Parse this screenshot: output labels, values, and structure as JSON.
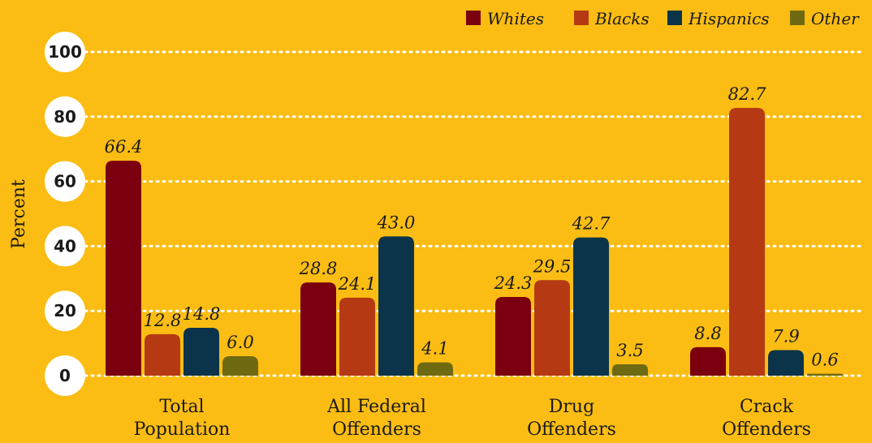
{
  "chart_data": {
    "type": "bar",
    "ylabel": "Percent",
    "ylim": [
      0,
      100
    ],
    "yticks": [
      0,
      20,
      40,
      60,
      80,
      100
    ],
    "grid": true,
    "legend_position": "top-right",
    "categories": [
      [
        "Total",
        "Population"
      ],
      [
        "All Federal",
        "Offenders"
      ],
      [
        "Drug",
        "Offenders"
      ],
      [
        "Crack",
        "Offenders"
      ]
    ],
    "series": [
      {
        "name": "Whites",
        "color": "#7a0010",
        "values": [
          66.4,
          28.8,
          24.3,
          8.8
        ]
      },
      {
        "name": "Blacks",
        "color": "#b53a13",
        "values": [
          12.8,
          24.1,
          29.5,
          82.7
        ]
      },
      {
        "name": "Hispanics",
        "color": "#0b344a",
        "values": [
          14.8,
          43.0,
          42.7,
          7.9
        ]
      },
      {
        "name": "Other",
        "color": "#6e6a12",
        "values": [
          6.0,
          4.1,
          3.5,
          0.6
        ]
      }
    ],
    "data_labels": [
      [
        "66.4",
        "28.8",
        "24.3",
        "8.8"
      ],
      [
        "12.8",
        "24.1",
        "29.5",
        "82.7"
      ],
      [
        "14.8",
        "43.0",
        "42.7",
        "7.9"
      ],
      [
        "6.0",
        "4.1",
        "3.5",
        "0.6"
      ]
    ],
    "colors": {
      "background": "#fbbd13",
      "gridline": "#ffffff",
      "tick_circle": "#ffffff",
      "text": "#1a1a1a"
    }
  }
}
